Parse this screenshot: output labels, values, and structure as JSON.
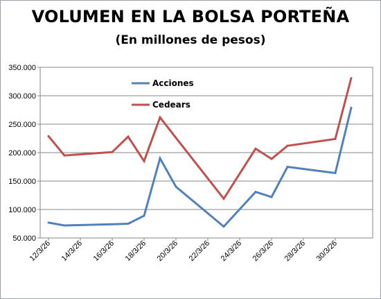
{
  "chart_data": {
    "type": "line",
    "title": "VOLUMEN EN LA BOLSA PORTEÑA",
    "subtitle": "(En millones de pesos)",
    "xlabel": "",
    "ylabel": "",
    "x": [
      "12/3/26",
      "13/3/26",
      "16/3/26",
      "17/3/26",
      "18/3/26",
      "19/3/26",
      "20/3/26",
      "23/3/26",
      "25/3/26",
      "26/3/26",
      "27/3/26",
      "30/3/26",
      "31/3/26"
    ],
    "x_tick_labels": [
      "12/3/26",
      "14/3/26",
      "16/3/26",
      "18/3/26",
      "20/3/26",
      "22/3/26",
      "24/3/26",
      "26/3/26",
      "28/3/26",
      "30/3/26"
    ],
    "y_tick_labels": [
      "50.000",
      "100.000",
      "150.000",
      "200.000",
      "250.000",
      "300.000",
      "350.000"
    ],
    "ylim": [
      50000,
      350000
    ],
    "grid": true,
    "legend_position": "top-center",
    "series": [
      {
        "name": "Acciones",
        "color": "#4f81bd",
        "values": [
          77000,
          72000,
          74000,
          75000,
          89000,
          190000,
          140000,
          70000,
          131000,
          122000,
          175000,
          164000,
          279000
        ]
      },
      {
        "name": "Cedears",
        "color": "#c0504d",
        "values": [
          229000,
          195000,
          201000,
          228000,
          185000,
          262000,
          226000,
          119000,
          207000,
          189000,
          212000,
          224000,
          331000
        ]
      }
    ]
  }
}
